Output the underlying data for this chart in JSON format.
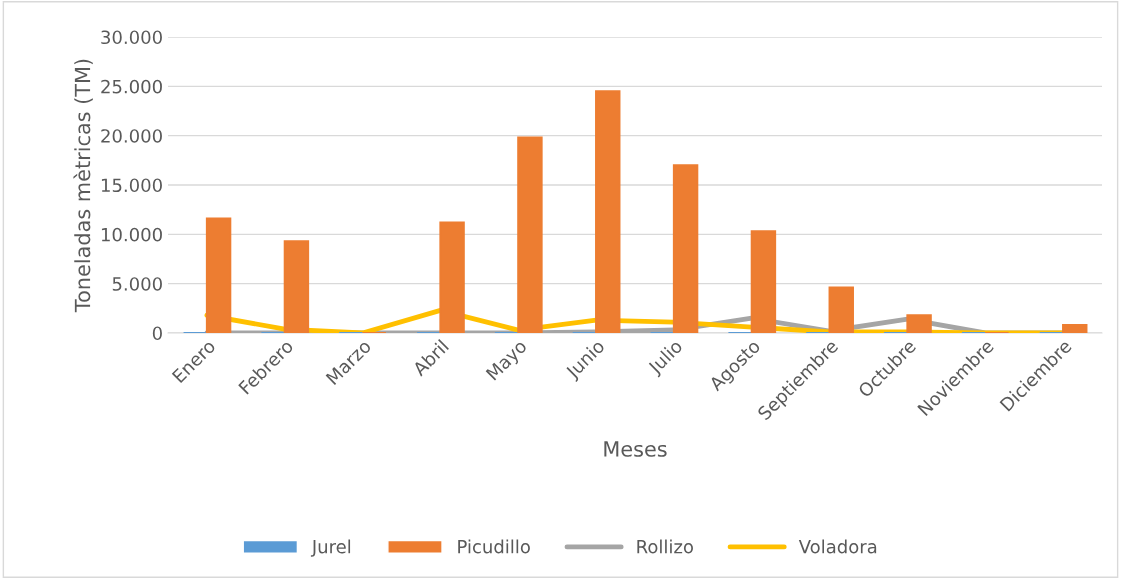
{
  "chart_data": {
    "type": "bar",
    "xlabel": "Meses",
    "ylabel": "Toneladas mètricas (TM)",
    "categories": [
      "Enero",
      "Febrero",
      "Marzo",
      "Abril",
      "Mayo",
      "Junio",
      "Julio",
      "Agosto",
      "Septiembre",
      "Octubre",
      "Noviembre",
      "Diciembre"
    ],
    "series": [
      {
        "name": "Jurel",
        "color": "#5b9bd5",
        "values": [
          0,
          0,
          0,
          0,
          0,
          0,
          0,
          0,
          0,
          0,
          0,
          0
        ]
      },
      {
        "name": "Picudillo",
        "color": "#ed7d31",
        "values": [
          11600,
          9300,
          0,
          11200,
          19800,
          24500,
          17000,
          10300,
          4600,
          1800,
          0,
          800
        ]
      },
      {
        "name": "Rollizo",
        "type": "line",
        "color": "#a5a5a5",
        "values": [
          0,
          0,
          0,
          0,
          0,
          100,
          300,
          1500,
          200,
          1400,
          0,
          0
        ]
      },
      {
        "name": "Voladora",
        "type": "line",
        "color": "#ffc000",
        "values": [
          1800,
          400,
          0,
          2300,
          300,
          1300,
          1100,
          600,
          100,
          100,
          0,
          0
        ]
      }
    ],
    "ylim": [
      0,
      30000
    ],
    "yticks": [
      {
        "value": 0,
        "label": "0"
      },
      {
        "value": 5000,
        "label": "5.000"
      },
      {
        "value": 10000,
        "label": "10.000"
      },
      {
        "value": 15000,
        "label": "15.000"
      },
      {
        "value": 20000,
        "label": "20.000"
      },
      {
        "value": 25000,
        "label": "25.000"
      },
      {
        "value": 30000,
        "label": "30.000"
      }
    ],
    "grid": "y",
    "legend": "bottom"
  }
}
